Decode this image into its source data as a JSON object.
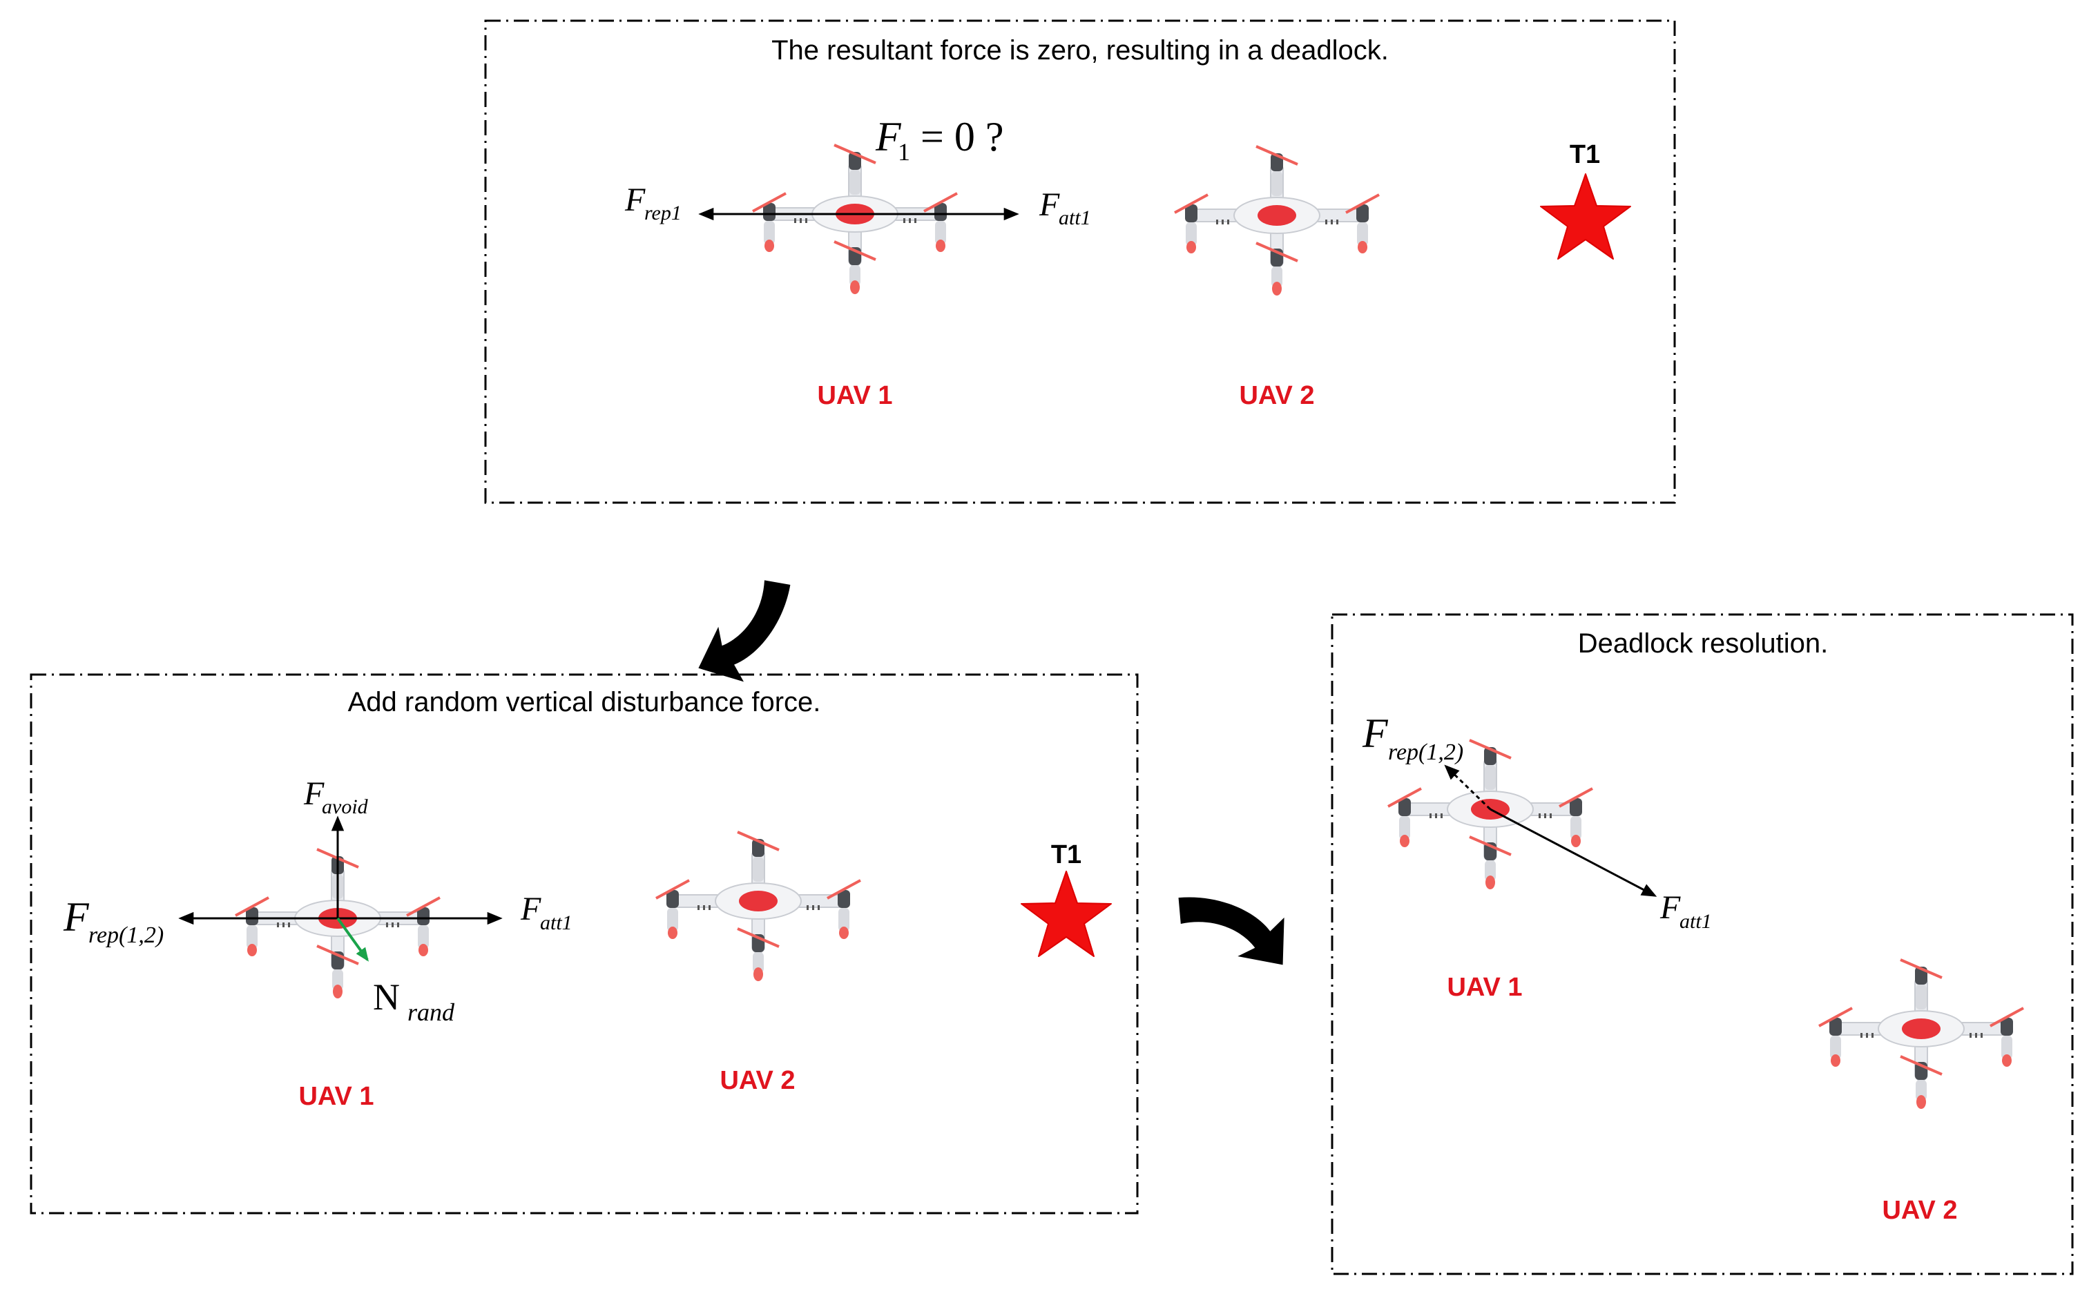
{
  "panels": {
    "top": {
      "title": "The resultant force is zero, resulting in a deadlock.",
      "equation": {
        "symbol": "F",
        "subscript": "1",
        "rest": "= 0 ?"
      },
      "force_left": {
        "symbol": "F",
        "subscript": "rep1"
      },
      "force_right": {
        "symbol": "F",
        "subscript": "att1"
      },
      "uav1_label": "UAV 1",
      "uav2_label": "UAV 2",
      "target_label": "T1"
    },
    "bottom_left": {
      "title": "Add random vertical disturbance force.",
      "force_up": {
        "symbol": "F",
        "subscript": "avoid"
      },
      "force_left": {
        "symbol": "F",
        "subscript": "rep(1,2)"
      },
      "force_right": {
        "symbol": "F",
        "subscript": "att1"
      },
      "noise": {
        "symbol": "N",
        "subscript": "rand"
      },
      "uav1_label": "UAV 1",
      "uav2_label": "UAV 2",
      "target_label": "T1"
    },
    "bottom_right": {
      "title": "Deadlock resolution.",
      "force_rep": {
        "symbol": "F",
        "subscript": "rep(1,2)"
      },
      "force_att": {
        "symbol": "F",
        "subscript": "att1"
      },
      "uav1_label": "UAV 1",
      "uav2_label": "UAV 2"
    }
  },
  "colors": {
    "uav_label": "#e0141e",
    "target_star": "#f00f0f",
    "noise_arrow": "#1aa34a",
    "drone_body": "#e9ebef",
    "drone_center": "#e8343a",
    "drone_motor": "#4a4d52",
    "propeller": "#f0605a"
  },
  "icons": {
    "drone": "quadcopter-icon",
    "target": "star-icon",
    "transition": "curved-arrow-icon"
  }
}
